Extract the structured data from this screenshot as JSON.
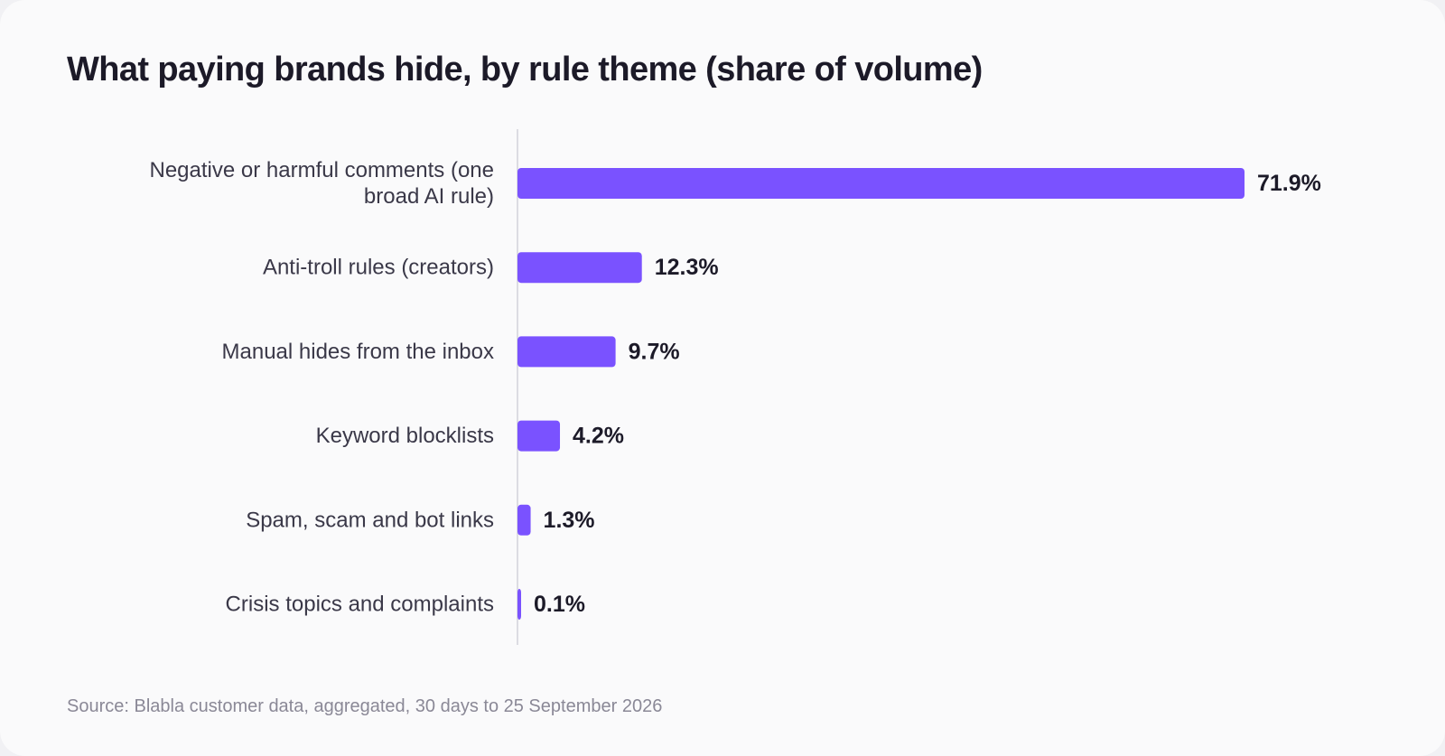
{
  "page": {
    "title": "What paying brands hide, by rule theme (share of volume)",
    "source": "Source: Blabla customer data, aggregated, 30 days to 25 September 2026"
  },
  "colors": {
    "bar": "#7a52ff",
    "axis": "#dcdce2",
    "background": "#fafafb"
  },
  "chart_data": {
    "type": "bar",
    "orientation": "horizontal",
    "title": "What paying brands hide, by rule theme (share of volume)",
    "categories": [
      [
        "Negative or harmful comments (one",
        "broad AI rule)"
      ],
      [
        "Anti-troll rules (creators)"
      ],
      [
        "Manual hides from the inbox"
      ],
      [
        "Keyword blocklists"
      ],
      [
        "Spam, scam and bot links"
      ],
      [
        "Crisis topics and complaints"
      ]
    ],
    "values": [
      71.9,
      12.3,
      9.7,
      4.2,
      1.3,
      0.1
    ],
    "value_labels": [
      "71.9%",
      "12.3%",
      "9.7%",
      "4.2%",
      "1.3%",
      "0.1%"
    ],
    "unit": "%",
    "xlim": [
      0,
      71.9
    ],
    "grid": false,
    "legend": "none"
  }
}
